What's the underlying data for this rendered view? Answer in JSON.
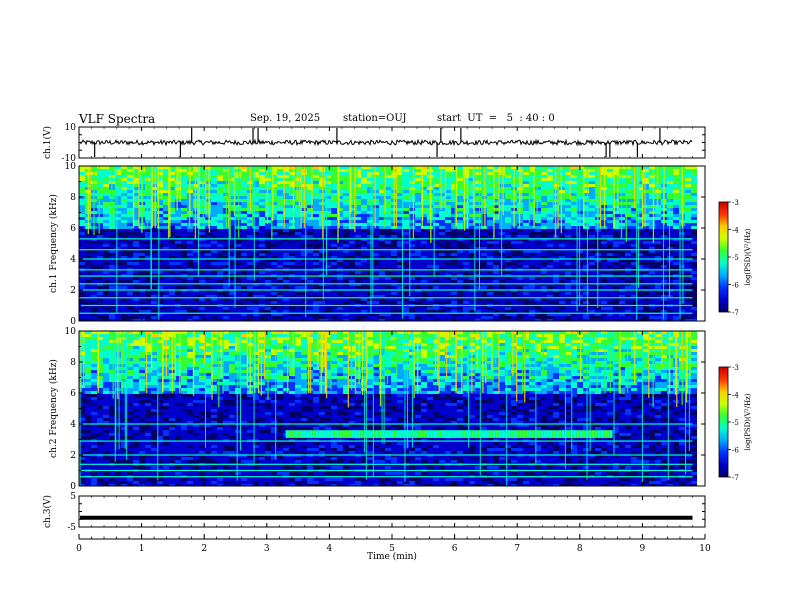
{
  "header": {
    "title": "VLF Spectra",
    "date": "Sep. 19, 2025",
    "station": "station=OUJ",
    "start": "start  UT  =   5  : 40 : 0"
  },
  "colors": {
    "waveform": "#000000",
    "frame": "#000000",
    "colormap": [
      "#000066",
      "#0000cc",
      "#0033ff",
      "#00aaff",
      "#00ffcc",
      "#33ff33",
      "#ccff00",
      "#ffcc00",
      "#ff3300",
      "#cc0000"
    ]
  },
  "chart_data": [
    {
      "type": "line",
      "panel": "ch1-waveform",
      "ylabel": "ch.1(V)",
      "ylim": [
        -10,
        10
      ],
      "y_ticks": [
        "10",
        "-10"
      ],
      "baseline_value": 0,
      "noise_amplitude": 1.5,
      "spikes_description": "impulsive spikes reaching beyond ±10 V near t = 1.7, 1.8, 2.8, 5.7, 8.5, 8.9, 9.3 min"
    },
    {
      "type": "heatmap",
      "panel": "ch1-spectrogram",
      "ylabel": "ch.1 Frequency (kHz)",
      "ylim": [
        0,
        10
      ],
      "y_ticks": [
        "0",
        "2",
        "4",
        "6",
        "8",
        "10"
      ],
      "colorbar": {
        "label": "log(PSD)(V²/Hz)",
        "min": -7,
        "max": -3,
        "ticks": [
          "-3",
          "-4",
          "-5",
          "-6",
          "-7"
        ]
      },
      "features": {
        "high_band_khz": [
          6,
          10
        ],
        "lines_khz": [
          0.5,
          1.0,
          1.5,
          2.0,
          2.4,
          2.9,
          3.3,
          4.0,
          4.6,
          5.3
        ]
      }
    },
    {
      "type": "heatmap",
      "panel": "ch2-spectrogram",
      "ylabel": "ch.2 Frequency (kHz)",
      "ylim": [
        0,
        10
      ],
      "y_ticks": [
        "0",
        "2",
        "4",
        "6",
        "8",
        "10"
      ],
      "colorbar": {
        "label": "log(PSD)(V²/Hz)",
        "min": -7,
        "max": -3,
        "ticks": [
          "-3",
          "-4",
          "-5",
          "-6",
          "-7"
        ]
      },
      "features": {
        "high_band_khz": [
          6,
          10
        ],
        "lines_khz": [
          0.6,
          1.0,
          1.4,
          2.0,
          2.9,
          4.0
        ],
        "band": {
          "t_start_min": 3.3,
          "t_end_min": 8.5,
          "f_low_khz": 3.1,
          "f_high_khz": 3.6
        }
      }
    },
    {
      "type": "line",
      "panel": "ch3-waveform",
      "ylabel": "ch.3(V)",
      "ylim": [
        -5,
        5
      ],
      "y_ticks": [
        "5",
        "-5"
      ],
      "baseline_value": -2
    }
  ],
  "x_axis": {
    "label": "Time (min)",
    "xlim": [
      0,
      10
    ],
    "ticks": [
      "0",
      "1",
      "2",
      "3",
      "4",
      "5",
      "6",
      "7",
      "8",
      "9",
      "10"
    ],
    "data_end_min": 9.8
  }
}
